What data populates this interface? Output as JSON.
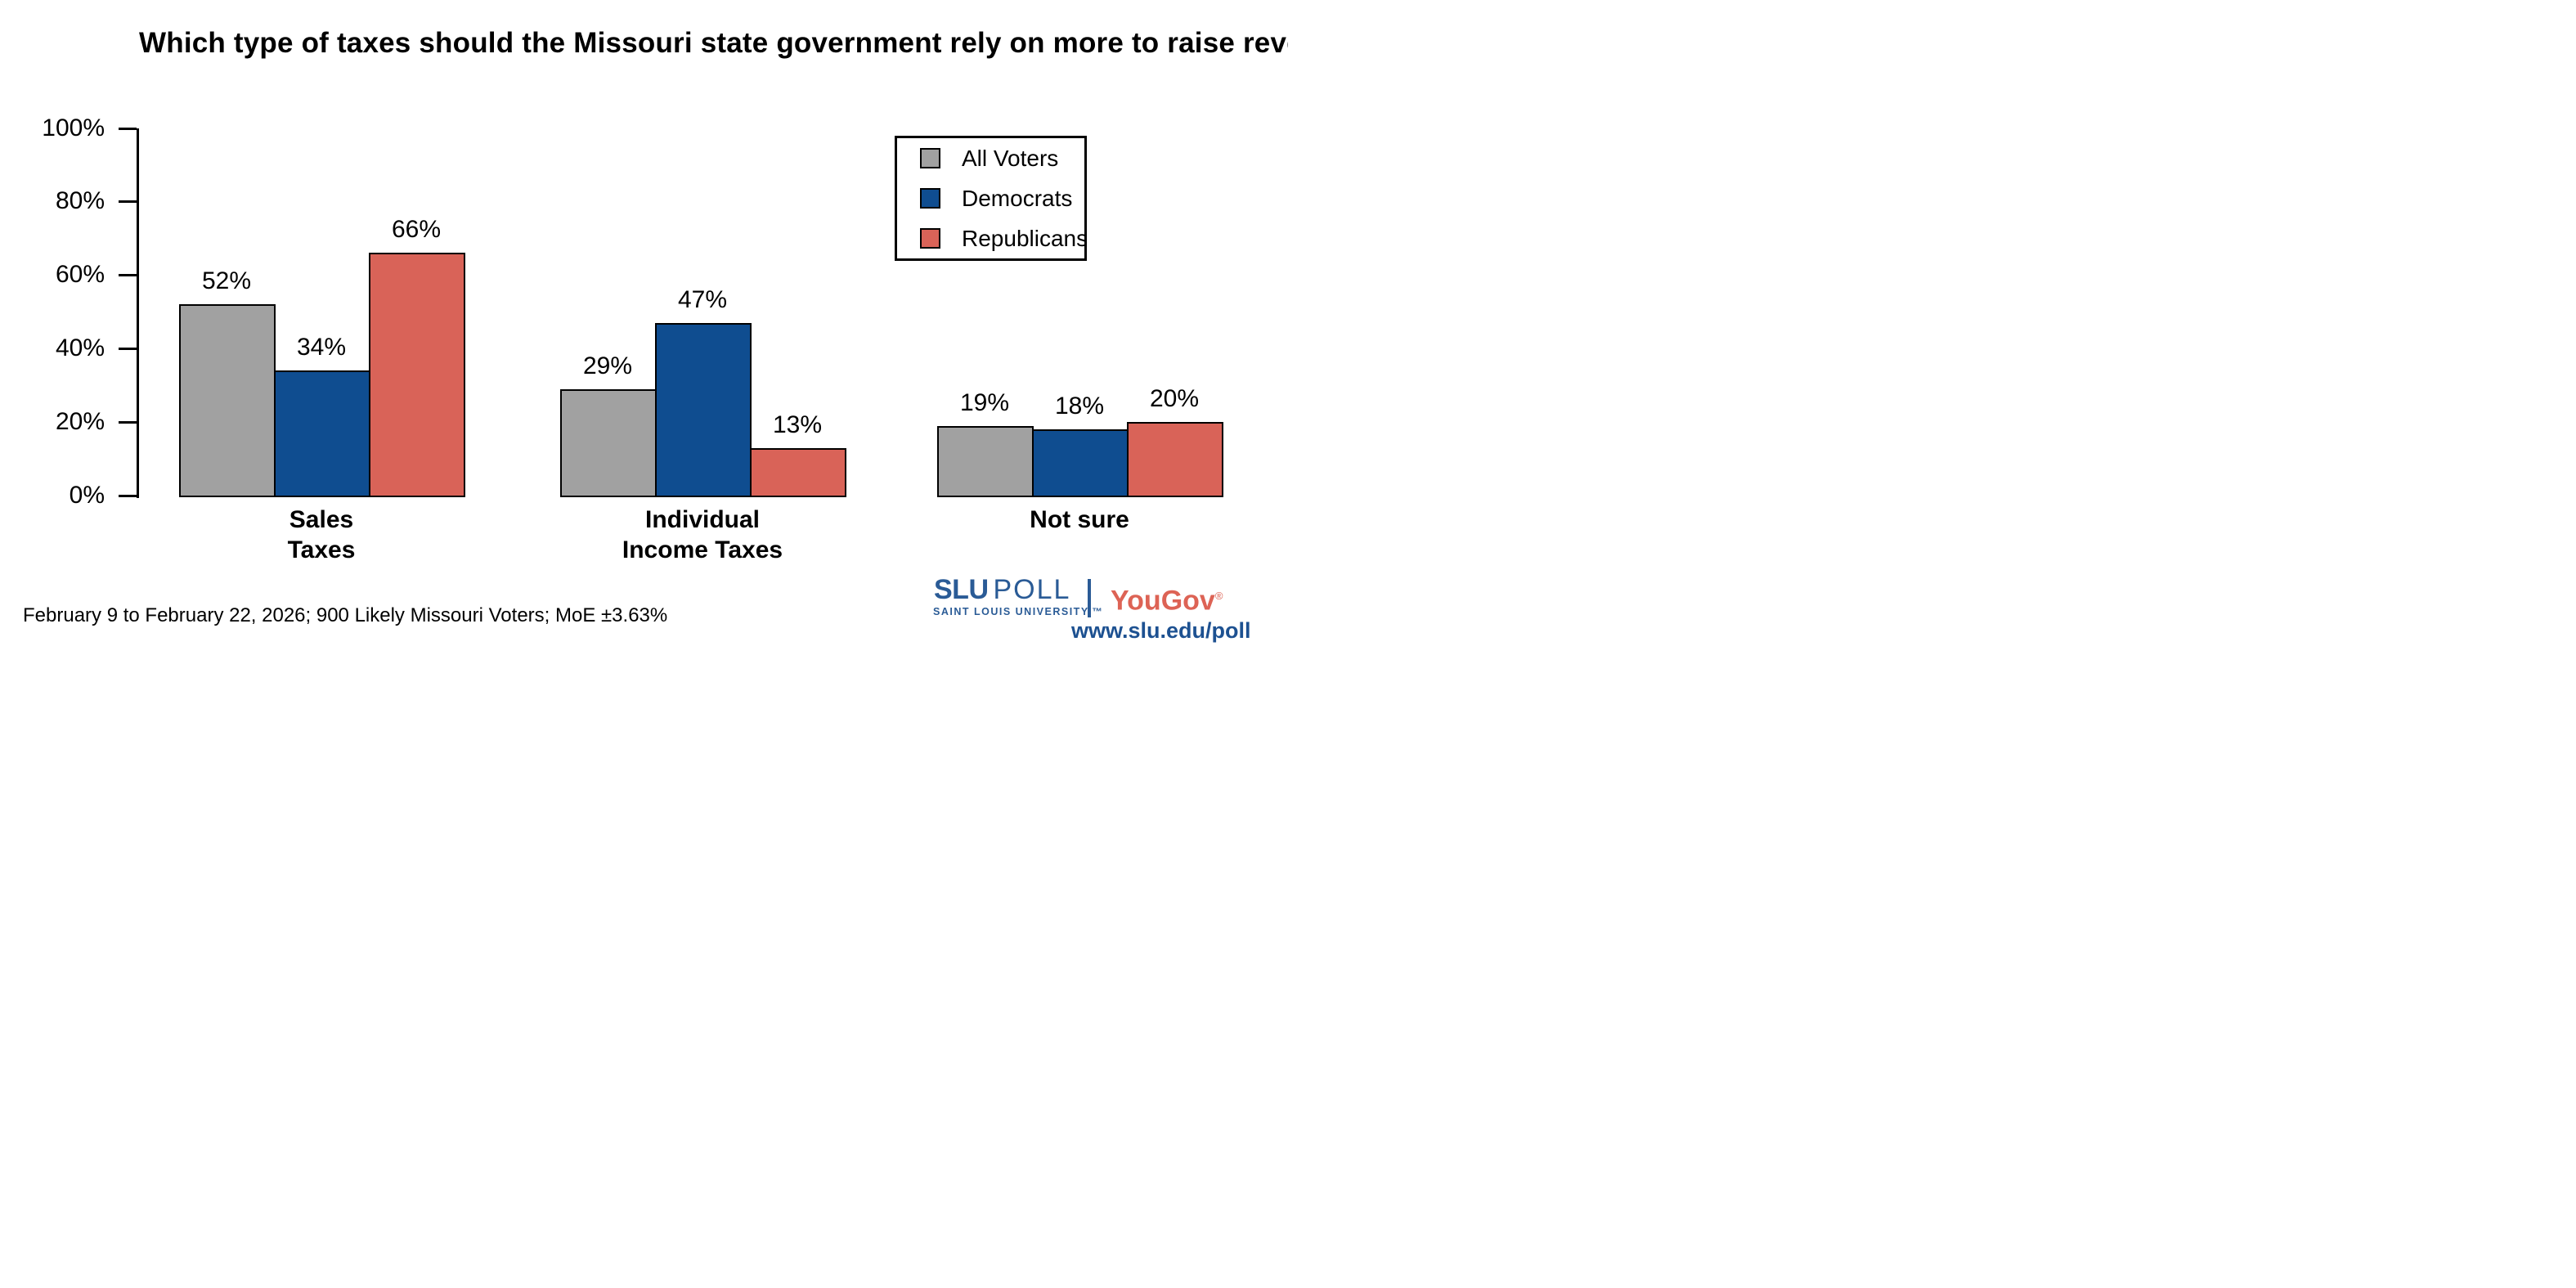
{
  "title": "Which type of taxes should the Missouri state government rely on more to raise revenue?",
  "chart_data": {
    "type": "bar",
    "title": "Which type of taxes should the Missouri state government rely on more to raise revenue?",
    "categories": [
      "Sales Taxes",
      "Individual Income Taxes",
      "Not sure"
    ],
    "category_label_lines": [
      [
        "Sales",
        "Taxes"
      ],
      [
        "Individual",
        "Income Taxes"
      ],
      [
        "Not sure"
      ]
    ],
    "series": [
      {
        "name": "All Voters",
        "color": "#a1a1a1",
        "values": [
          52,
          29,
          19
        ]
      },
      {
        "name": "Democrats",
        "color": "#0f4d90",
        "values": [
          34,
          47,
          18
        ]
      },
      {
        "name": "Republicans",
        "color": "#d96358",
        "values": [
          66,
          13,
          20
        ]
      }
    ],
    "value_labels": [
      [
        "52%",
        "29%",
        "19%"
      ],
      [
        "34%",
        "47%",
        "18%"
      ],
      [
        "66%",
        "13%",
        "20%"
      ]
    ],
    "value_label_suffix": "%",
    "xlabel": "",
    "ylabel": "",
    "ylim": [
      0,
      100
    ],
    "y_ticks": [
      0,
      20,
      40,
      60,
      80,
      100
    ],
    "y_tick_suffix": "%",
    "grid": false,
    "legend_position": "top-right",
    "bar_outline_color": "#000000"
  },
  "legend": {
    "entries": [
      "All Voters",
      "Democrats",
      "Republicans"
    ]
  },
  "footer": {
    "text": "February 9 to February 22, 2026; 900 Likely Missouri Voters; MoE ±3.63%"
  },
  "branding": {
    "slu_word": "SLU",
    "poll_word": "POLL",
    "university": "SAINT LOUIS UNIVERSITY.™",
    "yougov": "YouGov",
    "registered_mark": "®",
    "url": "www.slu.edu/poll",
    "slu_blue": "#2a5b96",
    "url_blue": "#1d5191",
    "yougov_red": "#dd6355"
  }
}
